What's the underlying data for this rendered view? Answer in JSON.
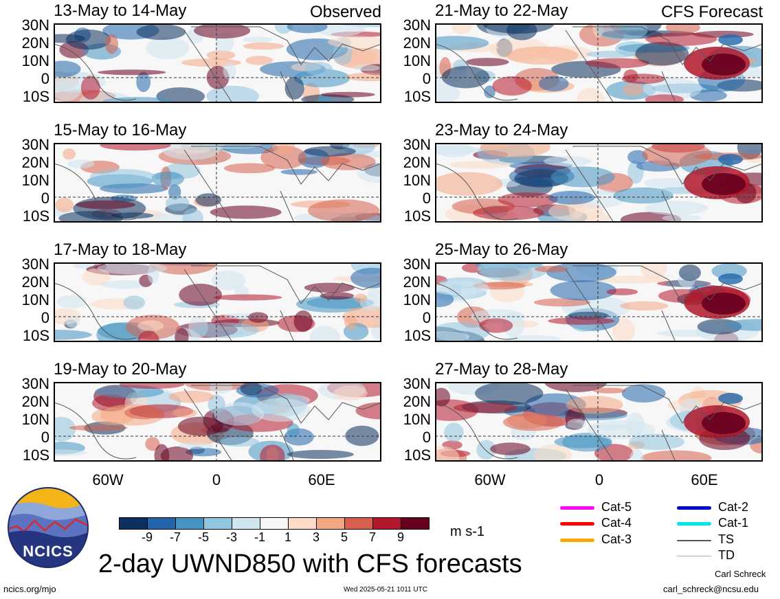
{
  "panels": [
    {
      "date": "13-May to 14-May",
      "label": "Observed"
    },
    {
      "date": "21-May to 22-May",
      "label": "CFS Forecast"
    },
    {
      "date": "15-May to 16-May",
      "label": ""
    },
    {
      "date": "23-May to 24-May",
      "label": ""
    },
    {
      "date": "17-May to 18-May",
      "label": ""
    },
    {
      "date": "25-May to 26-May",
      "label": ""
    },
    {
      "date": "19-May to 20-May",
      "label": ""
    },
    {
      "date": "27-May to 28-May",
      "label": ""
    }
  ],
  "lat_labels": [
    "30N",
    "20N",
    "10N",
    "0",
    "10S"
  ],
  "lon_labels": [
    "60W",
    "0",
    "60E"
  ],
  "colorbar": {
    "colors": [
      "#0b2f5e",
      "#2166ac",
      "#4393c3",
      "#92c5de",
      "#d1e5f0",
      "#f7f7f7",
      "#fddbc7",
      "#f4a582",
      "#d6604d",
      "#b2182b",
      "#67001f"
    ],
    "ticks": [
      "-9",
      "-7",
      "-5",
      "-3",
      "-1",
      "1",
      "3",
      "5",
      "7",
      "9"
    ],
    "units": "m s-1"
  },
  "track_legend": [
    {
      "label": "Cat-5",
      "color": "#ff00ff"
    },
    {
      "label": "Cat-4",
      "color": "#ff0000"
    },
    {
      "label": "Cat-3",
      "color": "#ffa500"
    },
    {
      "label": "Cat-2",
      "color": "#0000cd"
    },
    {
      "label": "Cat-1",
      "color": "#00e5ee"
    },
    {
      "label": "TS",
      "color": "#555555"
    },
    {
      "label": "TD",
      "color": "#aaaaaa"
    }
  ],
  "logo_text": "NCICS",
  "main_title": "2-day UWND850 with CFS forecasts",
  "footer": {
    "left": "ncics.org/mjo",
    "center": "Wed 2025-05-21 1011 UTC",
    "author": "Carl Schreck",
    "email": "carl_schreck@ncsu.edu"
  }
}
